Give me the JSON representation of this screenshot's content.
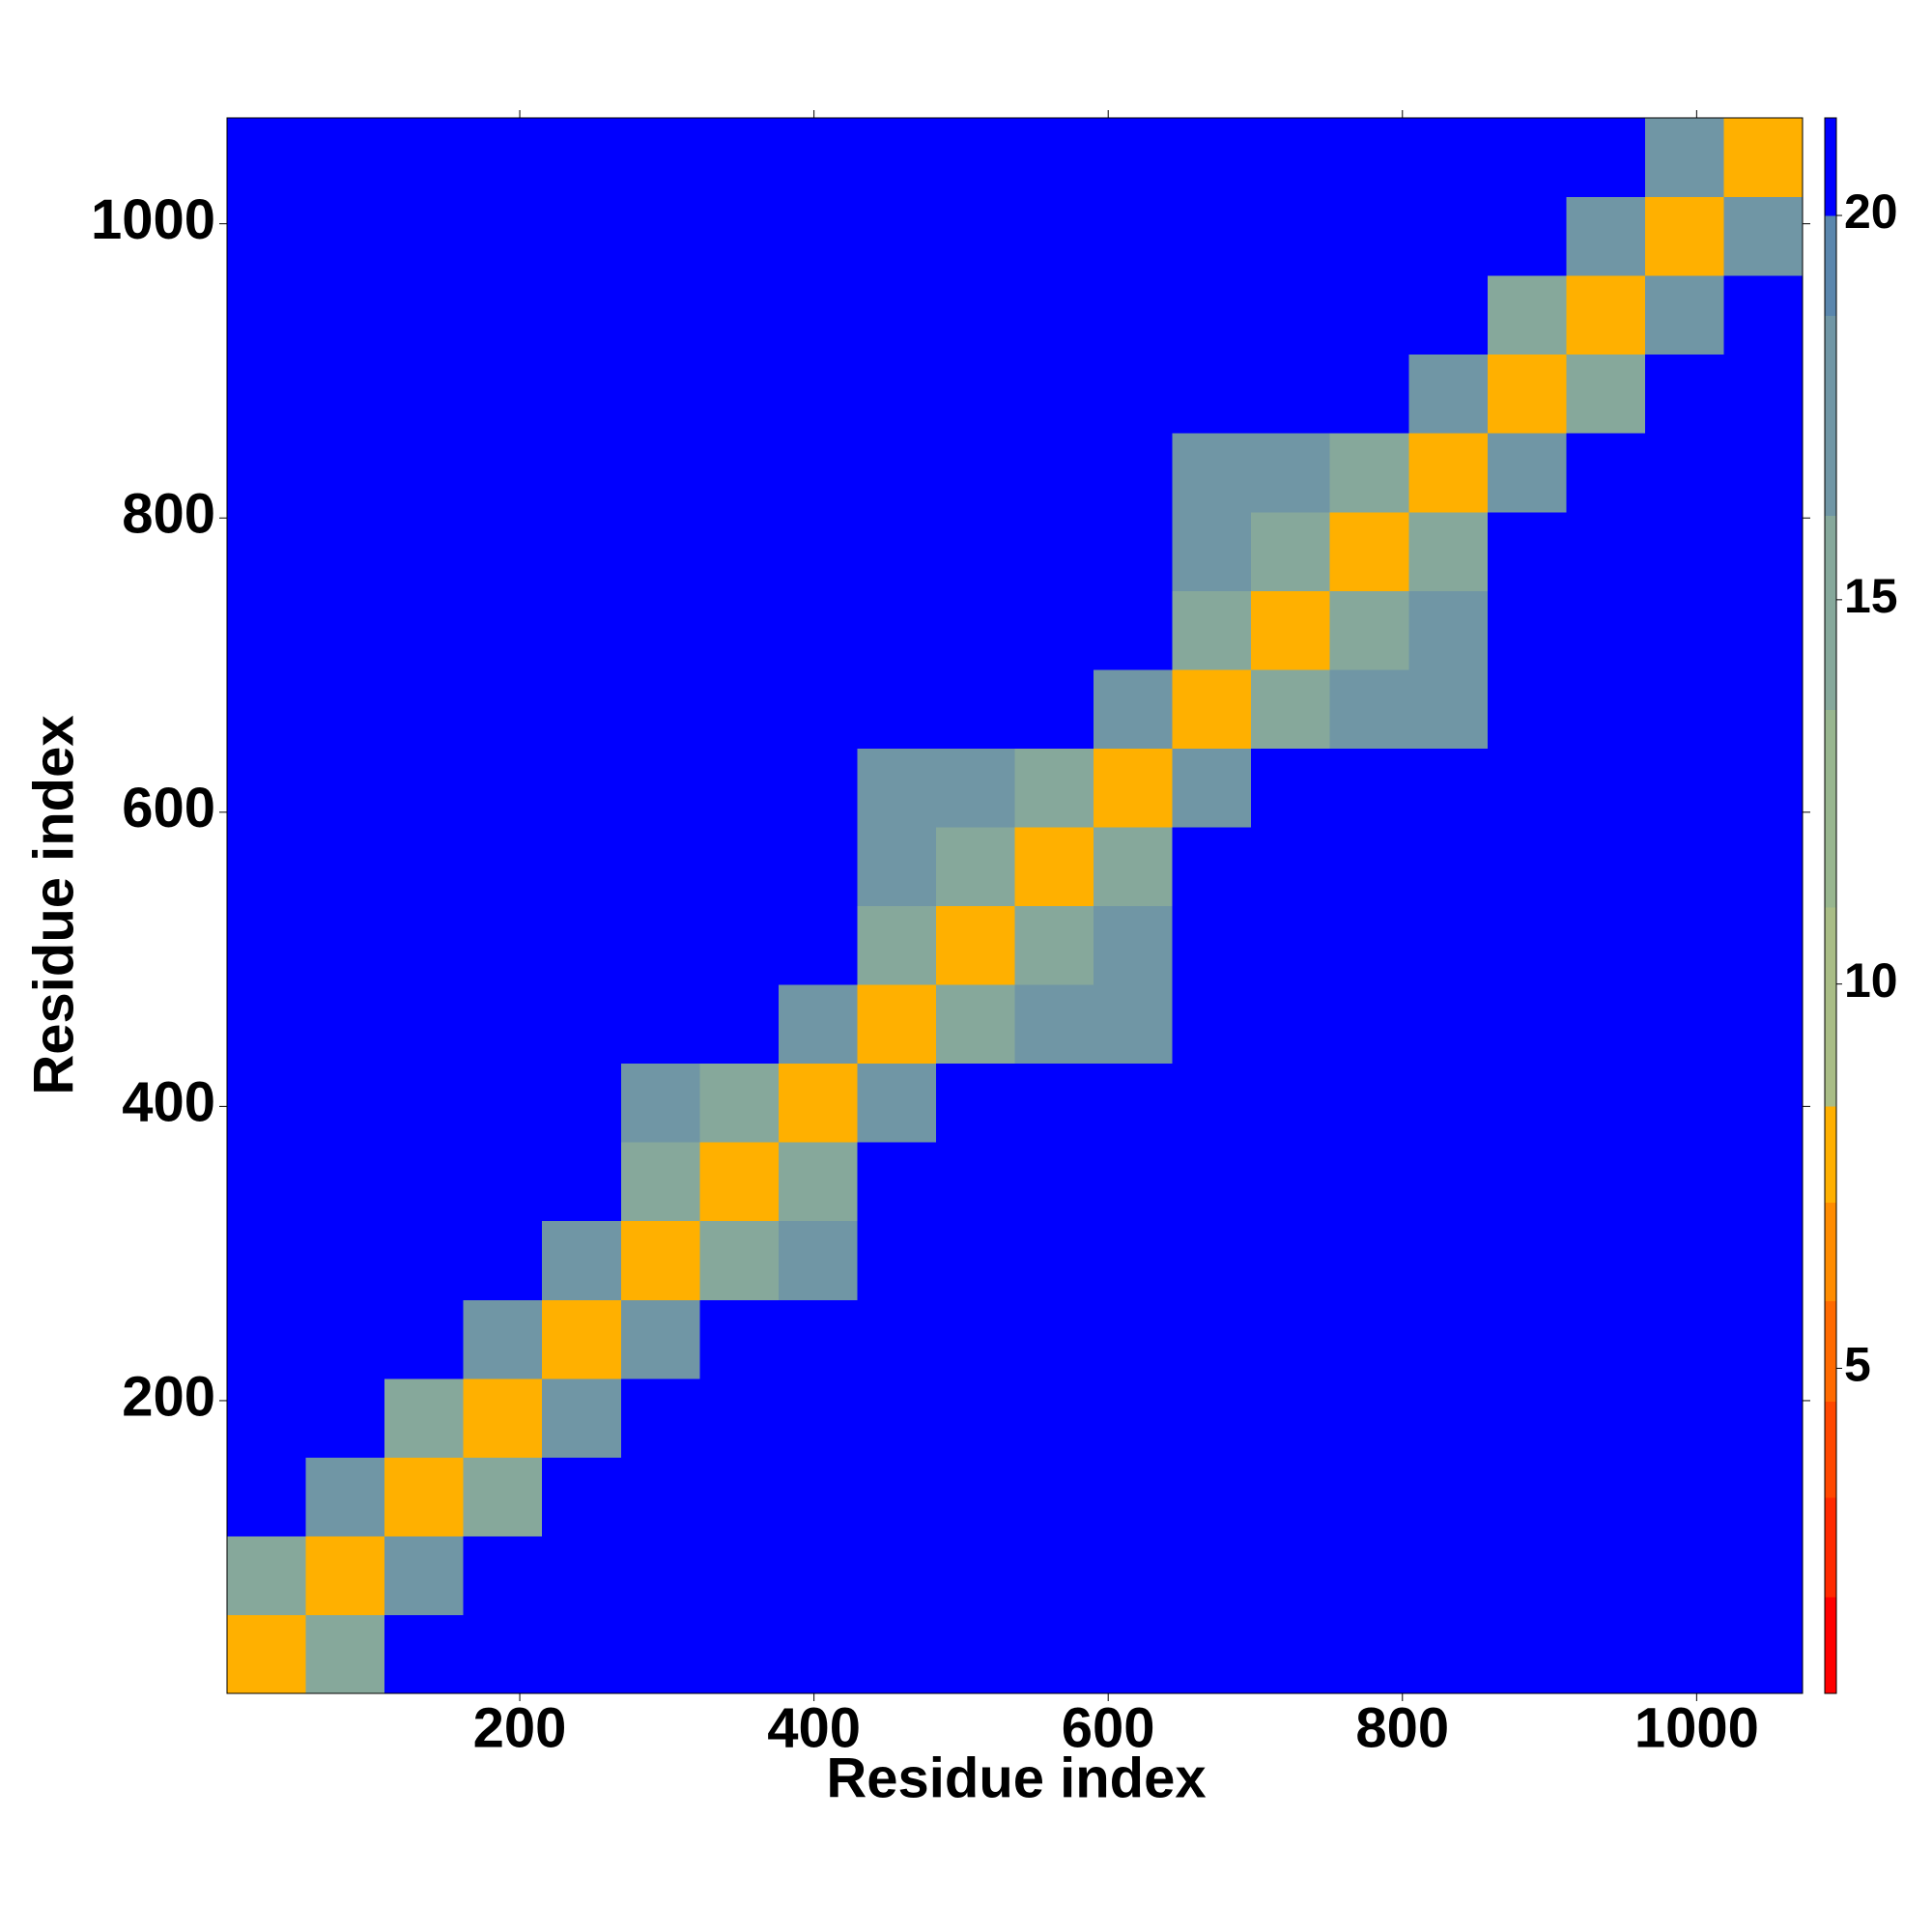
{
  "chart_data": {
    "type": "heatmap",
    "xlabel": "Residue index",
    "ylabel": "Residue index",
    "xlim": [
      1,
      1072
    ],
    "ylim": [
      1,
      1072
    ],
    "xticks": [
      200,
      400,
      600,
      800,
      1000
    ],
    "yticks": [
      200,
      400,
      600,
      800,
      1000
    ],
    "z": [
      [
        8,
        15,
        21,
        21,
        21,
        21,
        21,
        21,
        21,
        21,
        21,
        21,
        21,
        21,
        21,
        21,
        21,
        21,
        21,
        21
      ],
      [
        15,
        8,
        18,
        21,
        21,
        21,
        21,
        21,
        21,
        21,
        21,
        21,
        21,
        21,
        21,
        21,
        21,
        21,
        21,
        21
      ],
      [
        21,
        18,
        8,
        15,
        21,
        21,
        21,
        21,
        21,
        21,
        21,
        21,
        21,
        21,
        21,
        21,
        21,
        21,
        21,
        21
      ],
      [
        21,
        21,
        15,
        8,
        18,
        21,
        21,
        21,
        21,
        21,
        21,
        21,
        21,
        21,
        21,
        21,
        21,
        21,
        21,
        21
      ],
      [
        21,
        21,
        21,
        18,
        8,
        18,
        21,
        21,
        21,
        21,
        21,
        21,
        21,
        21,
        21,
        21,
        21,
        21,
        21,
        21
      ],
      [
        21,
        21,
        21,
        21,
        18,
        8,
        15,
        17,
        21,
        21,
        21,
        21,
        21,
        21,
        21,
        21,
        21,
        21,
        21,
        21
      ],
      [
        21,
        21,
        21,
        21,
        21,
        15,
        8,
        15,
        21,
        21,
        21,
        21,
        21,
        21,
        21,
        21,
        21,
        21,
        21,
        21
      ],
      [
        21,
        21,
        21,
        21,
        21,
        17,
        15,
        8,
        18,
        21,
        21,
        21,
        21,
        21,
        21,
        21,
        21,
        21,
        21,
        21
      ],
      [
        21,
        21,
        21,
        21,
        21,
        21,
        21,
        18,
        8,
        15,
        17,
        17,
        21,
        21,
        21,
        21,
        21,
        21,
        21,
        21
      ],
      [
        21,
        21,
        21,
        21,
        21,
        21,
        21,
        21,
        15,
        8,
        15,
        17,
        21,
        21,
        21,
        21,
        21,
        21,
        21,
        21
      ],
      [
        21,
        21,
        21,
        21,
        21,
        21,
        21,
        21,
        17,
        15,
        8,
        15,
        21,
        21,
        21,
        21,
        21,
        21,
        21,
        21
      ],
      [
        21,
        21,
        21,
        21,
        21,
        21,
        21,
        21,
        17,
        17,
        15,
        8,
        18,
        21,
        21,
        21,
        21,
        21,
        21,
        21
      ],
      [
        21,
        21,
        21,
        21,
        21,
        21,
        21,
        21,
        21,
        21,
        21,
        18,
        8,
        15,
        17,
        17,
        21,
        21,
        21,
        21
      ],
      [
        21,
        21,
        21,
        21,
        21,
        21,
        21,
        21,
        21,
        21,
        21,
        21,
        15,
        8,
        15,
        17,
        21,
        21,
        21,
        21
      ],
      [
        21,
        21,
        21,
        21,
        21,
        21,
        21,
        21,
        21,
        21,
        21,
        21,
        17,
        15,
        8,
        15,
        21,
        21,
        21,
        21
      ],
      [
        21,
        21,
        21,
        21,
        21,
        21,
        21,
        21,
        21,
        21,
        21,
        21,
        17,
        17,
        15,
        8,
        18,
        21,
        21,
        21
      ],
      [
        21,
        21,
        21,
        21,
        21,
        21,
        21,
        21,
        21,
        21,
        21,
        21,
        21,
        21,
        21,
        18,
        8,
        15,
        21,
        21
      ],
      [
        21,
        21,
        21,
        21,
        21,
        21,
        21,
        21,
        21,
        21,
        21,
        21,
        21,
        21,
        21,
        21,
        15,
        8,
        18,
        21
      ],
      [
        21,
        21,
        21,
        21,
        21,
        21,
        21,
        21,
        21,
        21,
        21,
        21,
        21,
        21,
        21,
        21,
        21,
        18,
        8,
        18
      ],
      [
        21,
        21,
        21,
        21,
        21,
        21,
        21,
        21,
        21,
        21,
        21,
        21,
        21,
        21,
        21,
        21,
        21,
        21,
        18,
        8
      ]
    ],
    "colorbar": {
      "lim": [
        0.77,
        21.27
      ],
      "ticks": [
        5,
        10,
        15,
        20
      ],
      "bounds": [
        0.77,
        2.03,
        3.32,
        4.57,
        5.88,
        7.16,
        8.41,
        11,
        13.57,
        16.1,
        18.7,
        20,
        21.27
      ],
      "colors": [
        "#ff0000",
        "#ff2a00",
        "#ff4800",
        "#ff6a00",
        "#ff8c00",
        "#ffb000",
        "#a9bd86",
        "#98b68f",
        "#86a89b",
        "#7096a5",
        "#5a86ad",
        "#0000ff"
      ]
    }
  }
}
